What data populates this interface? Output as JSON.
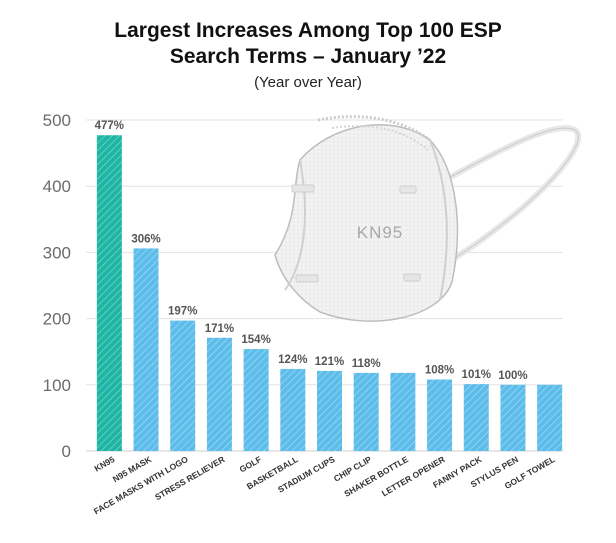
{
  "chart_data": {
    "type": "bar",
    "title_line1": "Largest Increases Among Top 100 ESP",
    "title_line2": "Search Terms – January ’22",
    "subtitle": "(Year over Year)",
    "categories": [
      "KN95",
      "N95 MASK",
      "FACE MASKS WITH LOGO",
      "STRESS RELIEVER",
      "GOLF",
      "BASKETBALL",
      "STADIUM CUPS",
      "CHIP CLIP",
      "SHAKER BOTTLE",
      "LETTER OPENER",
      "FANNY PACK",
      "STYLUS PEN",
      "GOLF TOWEL"
    ],
    "values": [
      477,
      306,
      197,
      171,
      154,
      124,
      121,
      118,
      118,
      108,
      101,
      100,
      100
    ],
    "value_labels": [
      "477%",
      "306%",
      "197%",
      "171%",
      "154%",
      "124%",
      "121%",
      "118%",
      "",
      "108%",
      "101%",
      "100%",
      ""
    ],
    "ylim": [
      0,
      500
    ],
    "yticks": [
      0,
      100,
      200,
      300,
      400,
      500
    ],
    "grid": true,
    "colors": {
      "highlight": "#1fb5a5",
      "bar": "#5cbcea"
    },
    "decoration": {
      "mask_text": "KN95"
    }
  }
}
